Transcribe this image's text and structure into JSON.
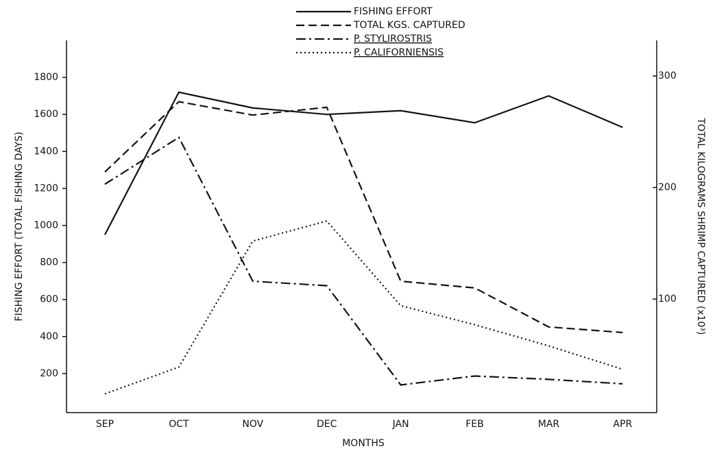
{
  "chart_data": {
    "type": "line",
    "categories": [
      "SEP",
      "OCT",
      "NOV",
      "DEC",
      "JAN",
      "FEB",
      "MAR",
      "APR"
    ],
    "series": [
      {
        "name": "FISHING EFFORT",
        "color": "#111111",
        "style": "solid",
        "axis": "y",
        "values": [
          950,
          1720,
          1635,
          1600,
          1620,
          1555,
          1700,
          1530
        ]
      },
      {
        "name": "TOTAL KGS. CAPTURED",
        "color": "#111111",
        "style": "dashed",
        "axis": "y2",
        "values": [
          214,
          277,
          265,
          272,
          116,
          110,
          75,
          70
        ]
      },
      {
        "name": "P. STYLIROSTRIS",
        "color": "#111111",
        "style": "dashdot",
        "axis": "y2",
        "values": [
          203,
          245,
          116,
          112,
          23,
          31,
          28,
          24
        ]
      },
      {
        "name": "P. CALIFORNIENSIS",
        "color": "#111111",
        "style": "dotted",
        "axis": "y2",
        "values": [
          15,
          39,
          152,
          170,
          94,
          77,
          58,
          37
        ]
      }
    ],
    "x_label": "MONTHS",
    "y_label": "FISHING EFFORT (TOTAL FISHING DAYS)",
    "y2_label": "TOTAL KILOGRAMS SHRIMP CAPTURED (x10³)",
    "ylim": [
      0,
      2000
    ],
    "yticks": [
      200,
      400,
      600,
      800,
      1000,
      1200,
      1400,
      1600,
      1800
    ],
    "y2lim": [
      0,
      332
    ],
    "y2ticks": [
      100,
      200,
      300
    ],
    "grid": false,
    "legend": "top"
  }
}
